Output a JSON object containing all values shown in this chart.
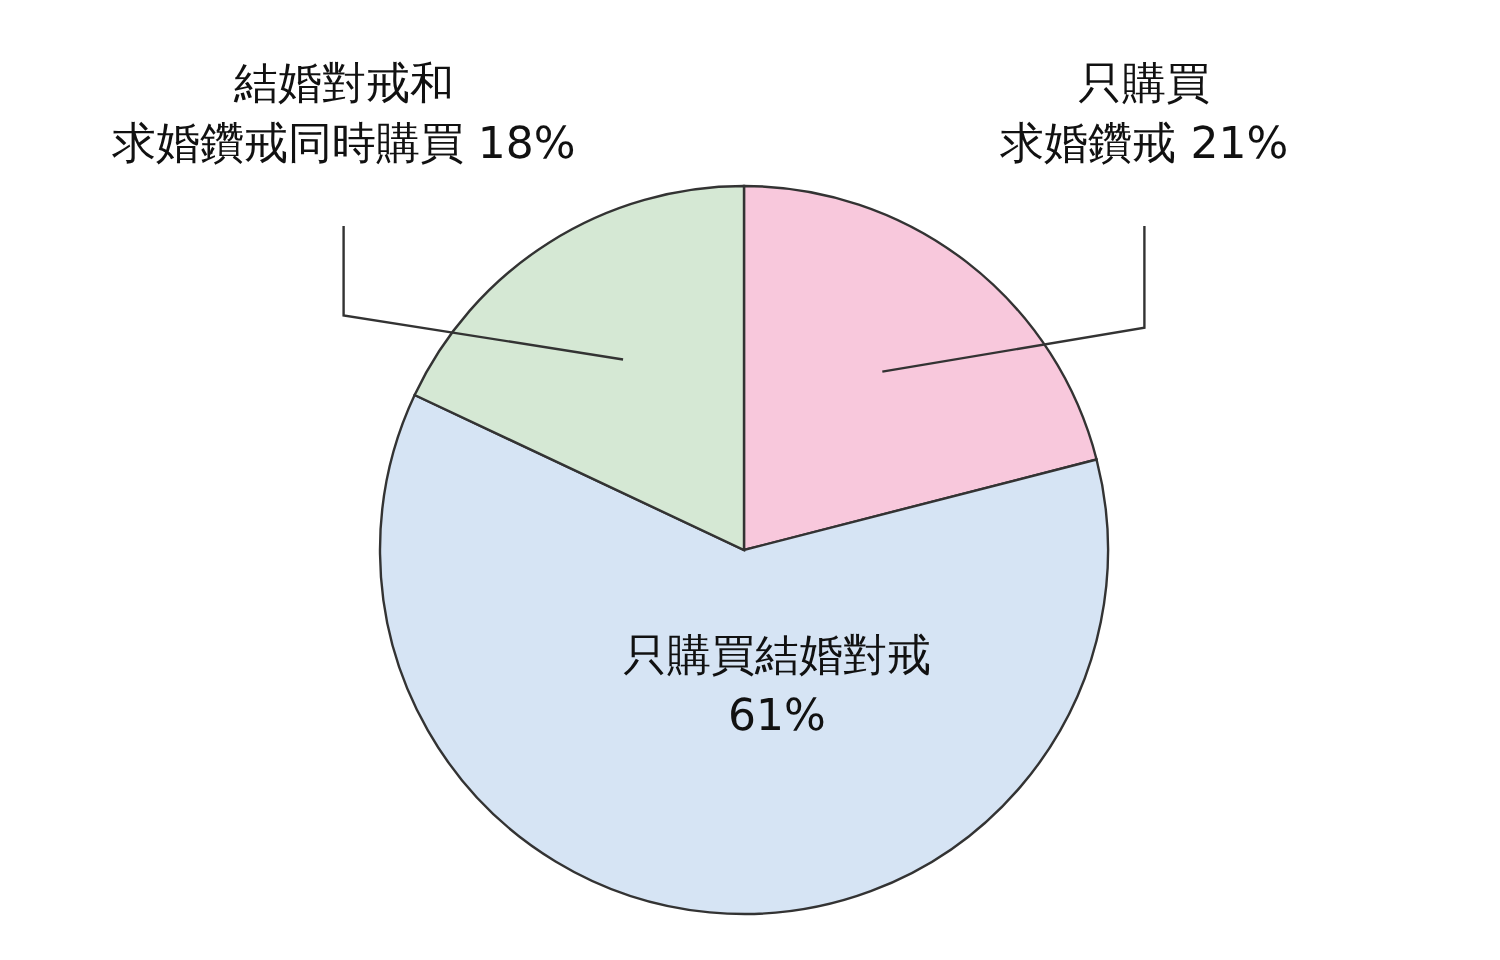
{
  "chart_data": {
    "type": "pie",
    "categories": [
      "只購買求婚鑽戒",
      "只購買結婚對戒",
      "結婚對戒和求婚鑽戒同時購買"
    ],
    "values": [
      21,
      61,
      18
    ],
    "value_labels": [
      "21%",
      "61%",
      "18%"
    ],
    "colors": [
      "#f8c8dc",
      "#d6e4f4",
      "#d5e8d4"
    ],
    "legend": false
  }
}
